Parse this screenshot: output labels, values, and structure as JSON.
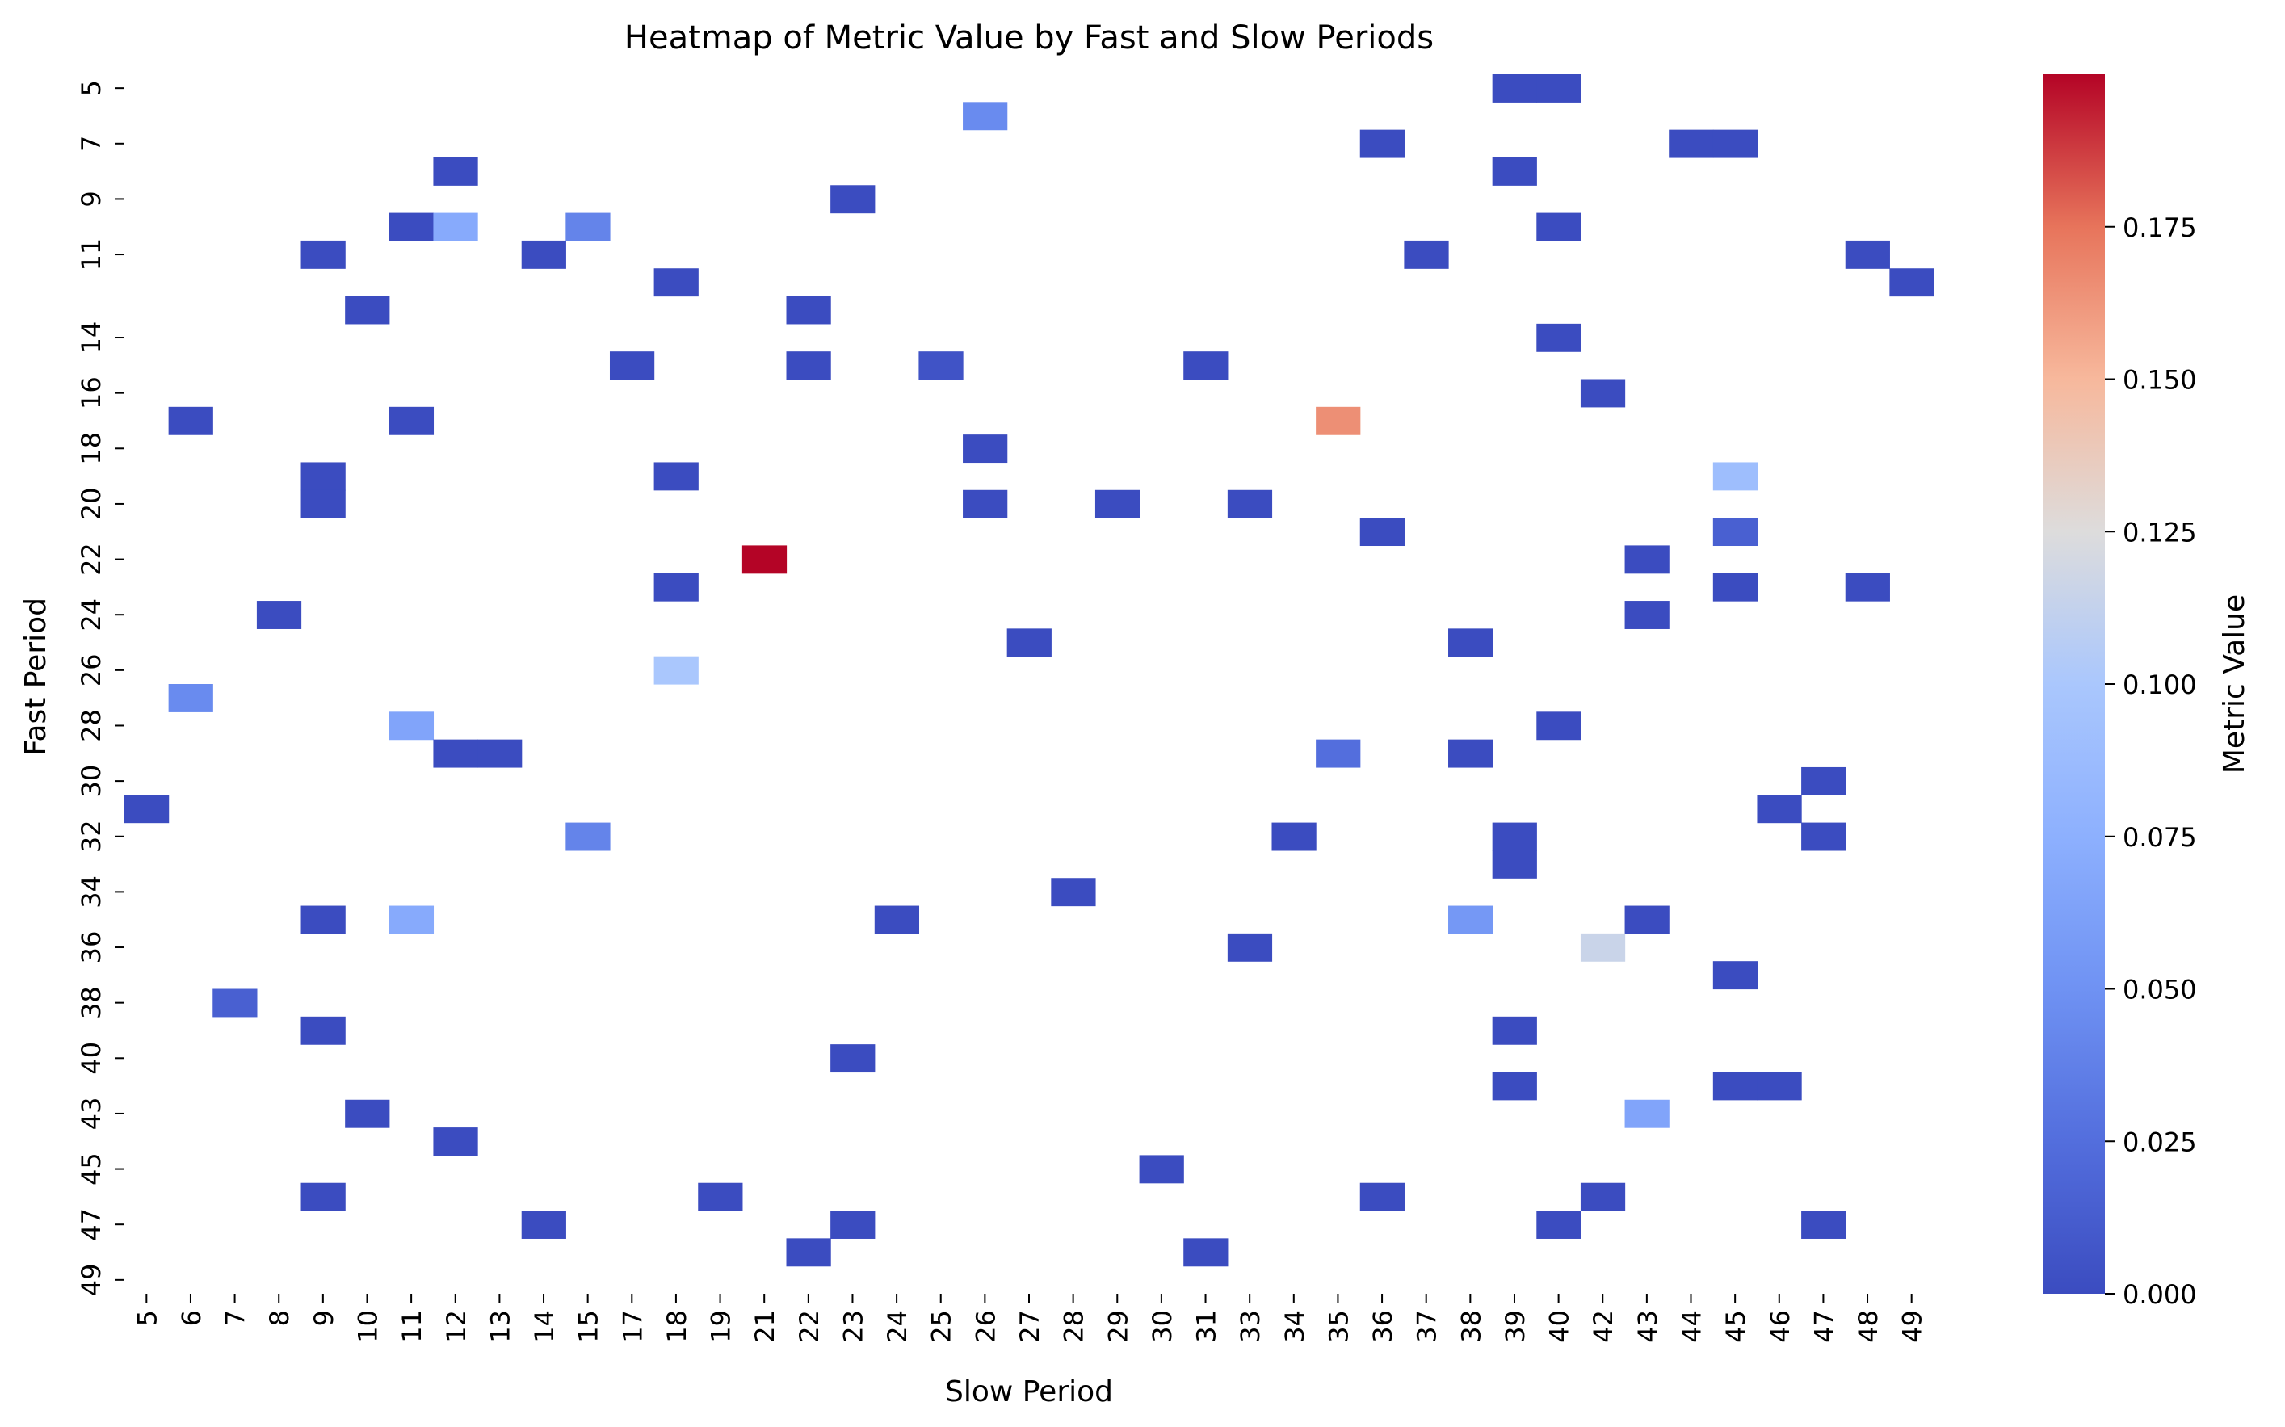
{
  "chart_data": {
    "type": "heatmap",
    "title": "Heatmap of Metric Value by Fast and Slow Periods",
    "xlabel": "Slow Period",
    "ylabel": "Fast Period",
    "colorbar_label": "Metric Value",
    "x_categories": [
      "5",
      "6",
      "7",
      "8",
      "9",
      "10",
      "11",
      "12",
      "13",
      "14",
      "15",
      "17",
      "18",
      "19",
      "21",
      "22",
      "23",
      "24",
      "25",
      "26",
      "27",
      "28",
      "29",
      "30",
      "31",
      "33",
      "34",
      "35",
      "36",
      "37",
      "38",
      "39",
      "40",
      "42",
      "43",
      "44",
      "45",
      "46",
      "47",
      "48",
      "49"
    ],
    "y_categories": [
      "5",
      "6",
      "7",
      "8",
      "9",
      "10",
      "11",
      "12",
      "13",
      "14",
      "15",
      "16",
      "17",
      "18",
      "19",
      "20",
      "21",
      "22",
      "23",
      "24",
      "25",
      "26",
      "27",
      "28",
      "29",
      "30",
      "31",
      "32",
      "33",
      "34",
      "35",
      "36",
      "37",
      "38",
      "39",
      "40",
      "41",
      "43",
      "44",
      "45",
      "46",
      "47",
      "48",
      "49"
    ],
    "y_tick_labels_shown": [
      "5",
      "7",
      "9",
      "11",
      "14",
      "16",
      "18",
      "20",
      "22",
      "24",
      "26",
      "28",
      "30",
      "32",
      "34",
      "36",
      "38",
      "40",
      "43",
      "45",
      "47",
      "49"
    ],
    "colorbar_ticks": [
      "0.000",
      "0.025",
      "0.050",
      "0.075",
      "0.100",
      "0.125",
      "0.150",
      "0.175"
    ],
    "value_range": [
      0.0,
      0.2
    ],
    "colormap": "coolwarm",
    "grid": false,
    "cells": [
      {
        "fast": "5",
        "slow": "39",
        "value": 0.0
      },
      {
        "fast": "5",
        "slow": "40",
        "value": 0.0
      },
      {
        "fast": "6",
        "slow": "26",
        "value": 0.045
      },
      {
        "fast": "7",
        "slow": "36",
        "value": 0.0
      },
      {
        "fast": "7",
        "slow": "44",
        "value": 0.0
      },
      {
        "fast": "7",
        "slow": "45",
        "value": 0.0
      },
      {
        "fast": "8",
        "slow": "12",
        "value": 0.0
      },
      {
        "fast": "8",
        "slow": "39",
        "value": 0.0
      },
      {
        "fast": "9",
        "slow": "23",
        "value": 0.0
      },
      {
        "fast": "10",
        "slow": "11",
        "value": 0.0
      },
      {
        "fast": "10",
        "slow": "12",
        "value": 0.07
      },
      {
        "fast": "10",
        "slow": "15",
        "value": 0.04
      },
      {
        "fast": "10",
        "slow": "40",
        "value": 0.0
      },
      {
        "fast": "11",
        "slow": "9",
        "value": 0.0
      },
      {
        "fast": "11",
        "slow": "14",
        "value": 0.0
      },
      {
        "fast": "11",
        "slow": "37",
        "value": 0.0
      },
      {
        "fast": "11",
        "slow": "48",
        "value": 0.0
      },
      {
        "fast": "12",
        "slow": "18",
        "value": 0.0
      },
      {
        "fast": "12",
        "slow": "49",
        "value": 0.0
      },
      {
        "fast": "13",
        "slow": "10",
        "value": 0.0
      },
      {
        "fast": "13",
        "slow": "22",
        "value": 0.0
      },
      {
        "fast": "14",
        "slow": "40",
        "value": 0.0
      },
      {
        "fast": "15",
        "slow": "17",
        "value": 0.0
      },
      {
        "fast": "15",
        "slow": "22",
        "value": 0.0
      },
      {
        "fast": "15",
        "slow": "25",
        "value": 0.005
      },
      {
        "fast": "15",
        "slow": "31",
        "value": 0.0
      },
      {
        "fast": "16",
        "slow": "42",
        "value": 0.0
      },
      {
        "fast": "17",
        "slow": "6",
        "value": 0.0
      },
      {
        "fast": "17",
        "slow": "11",
        "value": 0.0
      },
      {
        "fast": "17",
        "slow": "35",
        "value": 0.165
      },
      {
        "fast": "18",
        "slow": "26",
        "value": 0.0
      },
      {
        "fast": "19",
        "slow": "9",
        "value": 0.0
      },
      {
        "fast": "19",
        "slow": "18",
        "value": 0.0
      },
      {
        "fast": "19",
        "slow": "45",
        "value": 0.09
      },
      {
        "fast": "20",
        "slow": "9",
        "value": 0.0
      },
      {
        "fast": "20",
        "slow": "26",
        "value": 0.0
      },
      {
        "fast": "20",
        "slow": "29",
        "value": 0.0
      },
      {
        "fast": "20",
        "slow": "33",
        "value": 0.0
      },
      {
        "fast": "21",
        "slow": "36",
        "value": 0.0
      },
      {
        "fast": "21",
        "slow": "45",
        "value": 0.015
      },
      {
        "fast": "22",
        "slow": "21",
        "value": 0.2
      },
      {
        "fast": "22",
        "slow": "43",
        "value": 0.0
      },
      {
        "fast": "23",
        "slow": "18",
        "value": 0.0
      },
      {
        "fast": "23",
        "slow": "45",
        "value": 0.0
      },
      {
        "fast": "23",
        "slow": "48",
        "value": 0.0
      },
      {
        "fast": "24",
        "slow": "8",
        "value": 0.0
      },
      {
        "fast": "24",
        "slow": "43",
        "value": 0.0
      },
      {
        "fast": "25",
        "slow": "27",
        "value": 0.0
      },
      {
        "fast": "25",
        "slow": "38",
        "value": 0.0
      },
      {
        "fast": "26",
        "slow": "18",
        "value": 0.1
      },
      {
        "fast": "27",
        "slow": "6",
        "value": 0.045
      },
      {
        "fast": "28",
        "slow": "11",
        "value": 0.065
      },
      {
        "fast": "28",
        "slow": "40",
        "value": 0.0
      },
      {
        "fast": "29",
        "slow": "12",
        "value": 0.0
      },
      {
        "fast": "29",
        "slow": "13",
        "value": 0.0
      },
      {
        "fast": "29",
        "slow": "35",
        "value": 0.025
      },
      {
        "fast": "29",
        "slow": "38",
        "value": 0.0
      },
      {
        "fast": "30",
        "slow": "47",
        "value": 0.0
      },
      {
        "fast": "31",
        "slow": "5",
        "value": 0.0
      },
      {
        "fast": "31",
        "slow": "46",
        "value": 0.0
      },
      {
        "fast": "32",
        "slow": "15",
        "value": 0.04
      },
      {
        "fast": "32",
        "slow": "34",
        "value": 0.0
      },
      {
        "fast": "32",
        "slow": "39",
        "value": 0.0
      },
      {
        "fast": "32",
        "slow": "47",
        "value": 0.0
      },
      {
        "fast": "33",
        "slow": "39",
        "value": 0.0
      },
      {
        "fast": "34",
        "slow": "28",
        "value": 0.0
      },
      {
        "fast": "35",
        "slow": "9",
        "value": 0.0
      },
      {
        "fast": "35",
        "slow": "11",
        "value": 0.07
      },
      {
        "fast": "35",
        "slow": "24",
        "value": 0.0
      },
      {
        "fast": "35",
        "slow": "38",
        "value": 0.055
      },
      {
        "fast": "35",
        "slow": "43",
        "value": 0.0
      },
      {
        "fast": "36",
        "slow": "33",
        "value": 0.0
      },
      {
        "fast": "36",
        "slow": "42",
        "value": 0.115
      },
      {
        "fast": "37",
        "slow": "45",
        "value": 0.0
      },
      {
        "fast": "38",
        "slow": "7",
        "value": 0.015
      },
      {
        "fast": "39",
        "slow": "9",
        "value": 0.0
      },
      {
        "fast": "39",
        "slow": "39",
        "value": 0.0
      },
      {
        "fast": "40",
        "slow": "23",
        "value": 0.0
      },
      {
        "fast": "41",
        "slow": "39",
        "value": 0.0
      },
      {
        "fast": "41",
        "slow": "45",
        "value": 0.0
      },
      {
        "fast": "41",
        "slow": "46",
        "value": 0.0
      },
      {
        "fast": "43",
        "slow": "10",
        "value": 0.0
      },
      {
        "fast": "43",
        "slow": "43",
        "value": 0.065
      },
      {
        "fast": "44",
        "slow": "12",
        "value": 0.0
      },
      {
        "fast": "45",
        "slow": "30",
        "value": 0.0
      },
      {
        "fast": "46",
        "slow": "9",
        "value": 0.0
      },
      {
        "fast": "46",
        "slow": "19",
        "value": 0.0
      },
      {
        "fast": "46",
        "slow": "36",
        "value": 0.0
      },
      {
        "fast": "46",
        "slow": "42",
        "value": 0.0
      },
      {
        "fast": "47",
        "slow": "14",
        "value": 0.0
      },
      {
        "fast": "47",
        "slow": "23",
        "value": 0.0
      },
      {
        "fast": "47",
        "slow": "40",
        "value": 0.0
      },
      {
        "fast": "47",
        "slow": "47",
        "value": 0.0
      },
      {
        "fast": "48",
        "slow": "22",
        "value": 0.0
      },
      {
        "fast": "48",
        "slow": "31",
        "value": 0.0
      }
    ]
  }
}
